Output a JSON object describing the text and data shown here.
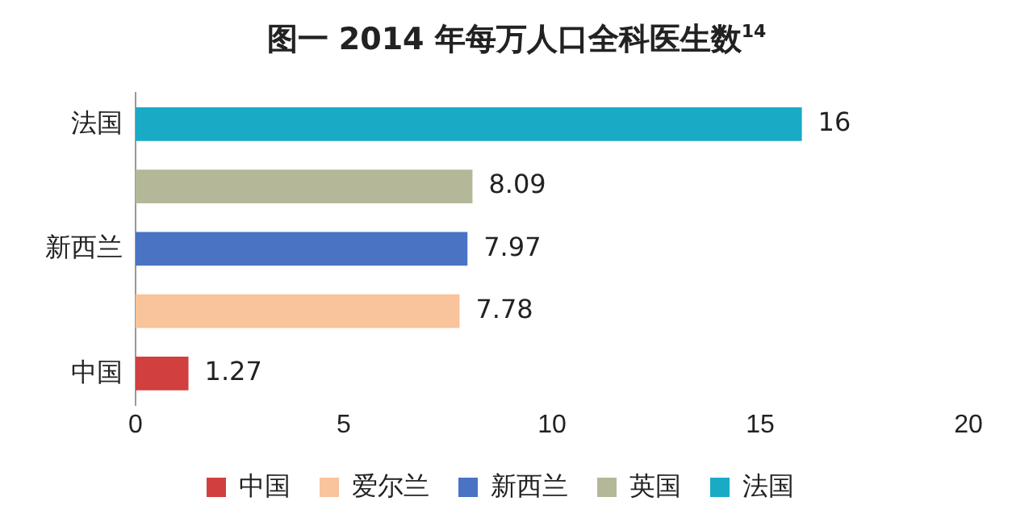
{
  "chart_data": {
    "type": "bar",
    "orientation": "horizontal",
    "stacked": true,
    "title": "图一  2014 年每万人口全科医生数$^{14}$",
    "categories": [
      "法国",
      null,
      "新西兰",
      null,
      "中国"
    ],
    "series": [
      {
        "name": "中国",
        "color": "#d23f3f",
        "values": [
          null,
          null,
          null,
          null,
          1.27
        ]
      },
      {
        "name": "爱尔兰",
        "color": "#f9c39b",
        "values": [
          null,
          null,
          null,
          7.78,
          null
        ]
      },
      {
        "name": "新西兰",
        "color": "#4a73c4",
        "values": [
          null,
          null,
          7.97,
          null,
          null
        ]
      },
      {
        "name": "英国",
        "color": "#b4b898",
        "values": [
          null,
          8.09,
          null,
          null,
          null
        ]
      },
      {
        "name": "法国",
        "color": "#19aac6",
        "values": [
          16,
          null,
          null,
          null,
          null
        ]
      }
    ],
    "xlim": [
      0,
      20
    ],
    "xticks": [
      0,
      5,
      10,
      15,
      20
    ],
    "grid": false,
    "legend": "bottom",
    "data_labels": true
  }
}
